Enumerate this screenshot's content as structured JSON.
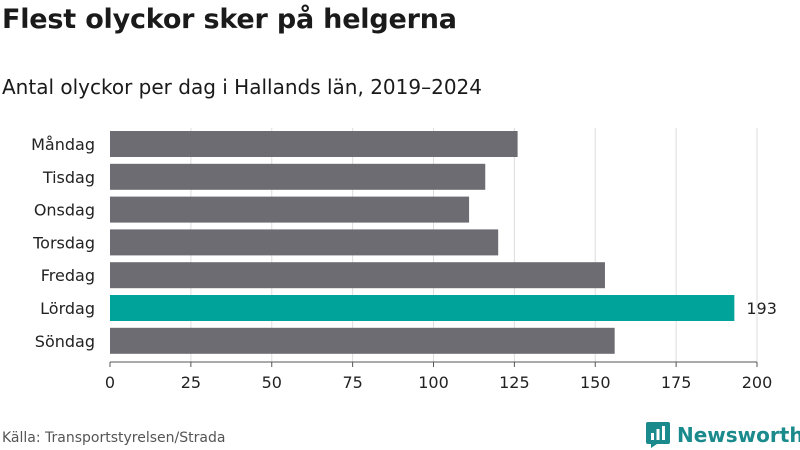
{
  "title": "Flest olyckor sker på helgerna",
  "subtitle": "Antal olyckor per dag i Hallands län, 2019–2024",
  "source": "Källa: Transportstyrelsen/Strada",
  "brand": {
    "name": "Newsworthy",
    "icon": "newsworthy-logo-icon",
    "color": "#1a8a8c"
  },
  "colors": {
    "default_bar": "#6d6c73",
    "highlight_bar": "#00a39a",
    "grid": "#dddddd"
  },
  "chart_data": {
    "type": "bar",
    "orientation": "horizontal",
    "title": "Flest olyckor sker på helgerna",
    "subtitle": "Antal olyckor per dag i Hallands län, 2019–2024",
    "categories": [
      "Måndag",
      "Tisdag",
      "Onsdag",
      "Torsdag",
      "Fredag",
      "Lördag",
      "Söndag"
    ],
    "values": [
      126,
      116,
      111,
      120,
      153,
      193,
      156
    ],
    "highlight": "Lördag",
    "data_labels": [
      {
        "category": "Lördag",
        "label": "193"
      }
    ],
    "xlim": [
      0,
      200
    ],
    "xticks": [
      0,
      25,
      50,
      75,
      100,
      125,
      150,
      175,
      200
    ],
    "grid": true,
    "legend": "none"
  }
}
